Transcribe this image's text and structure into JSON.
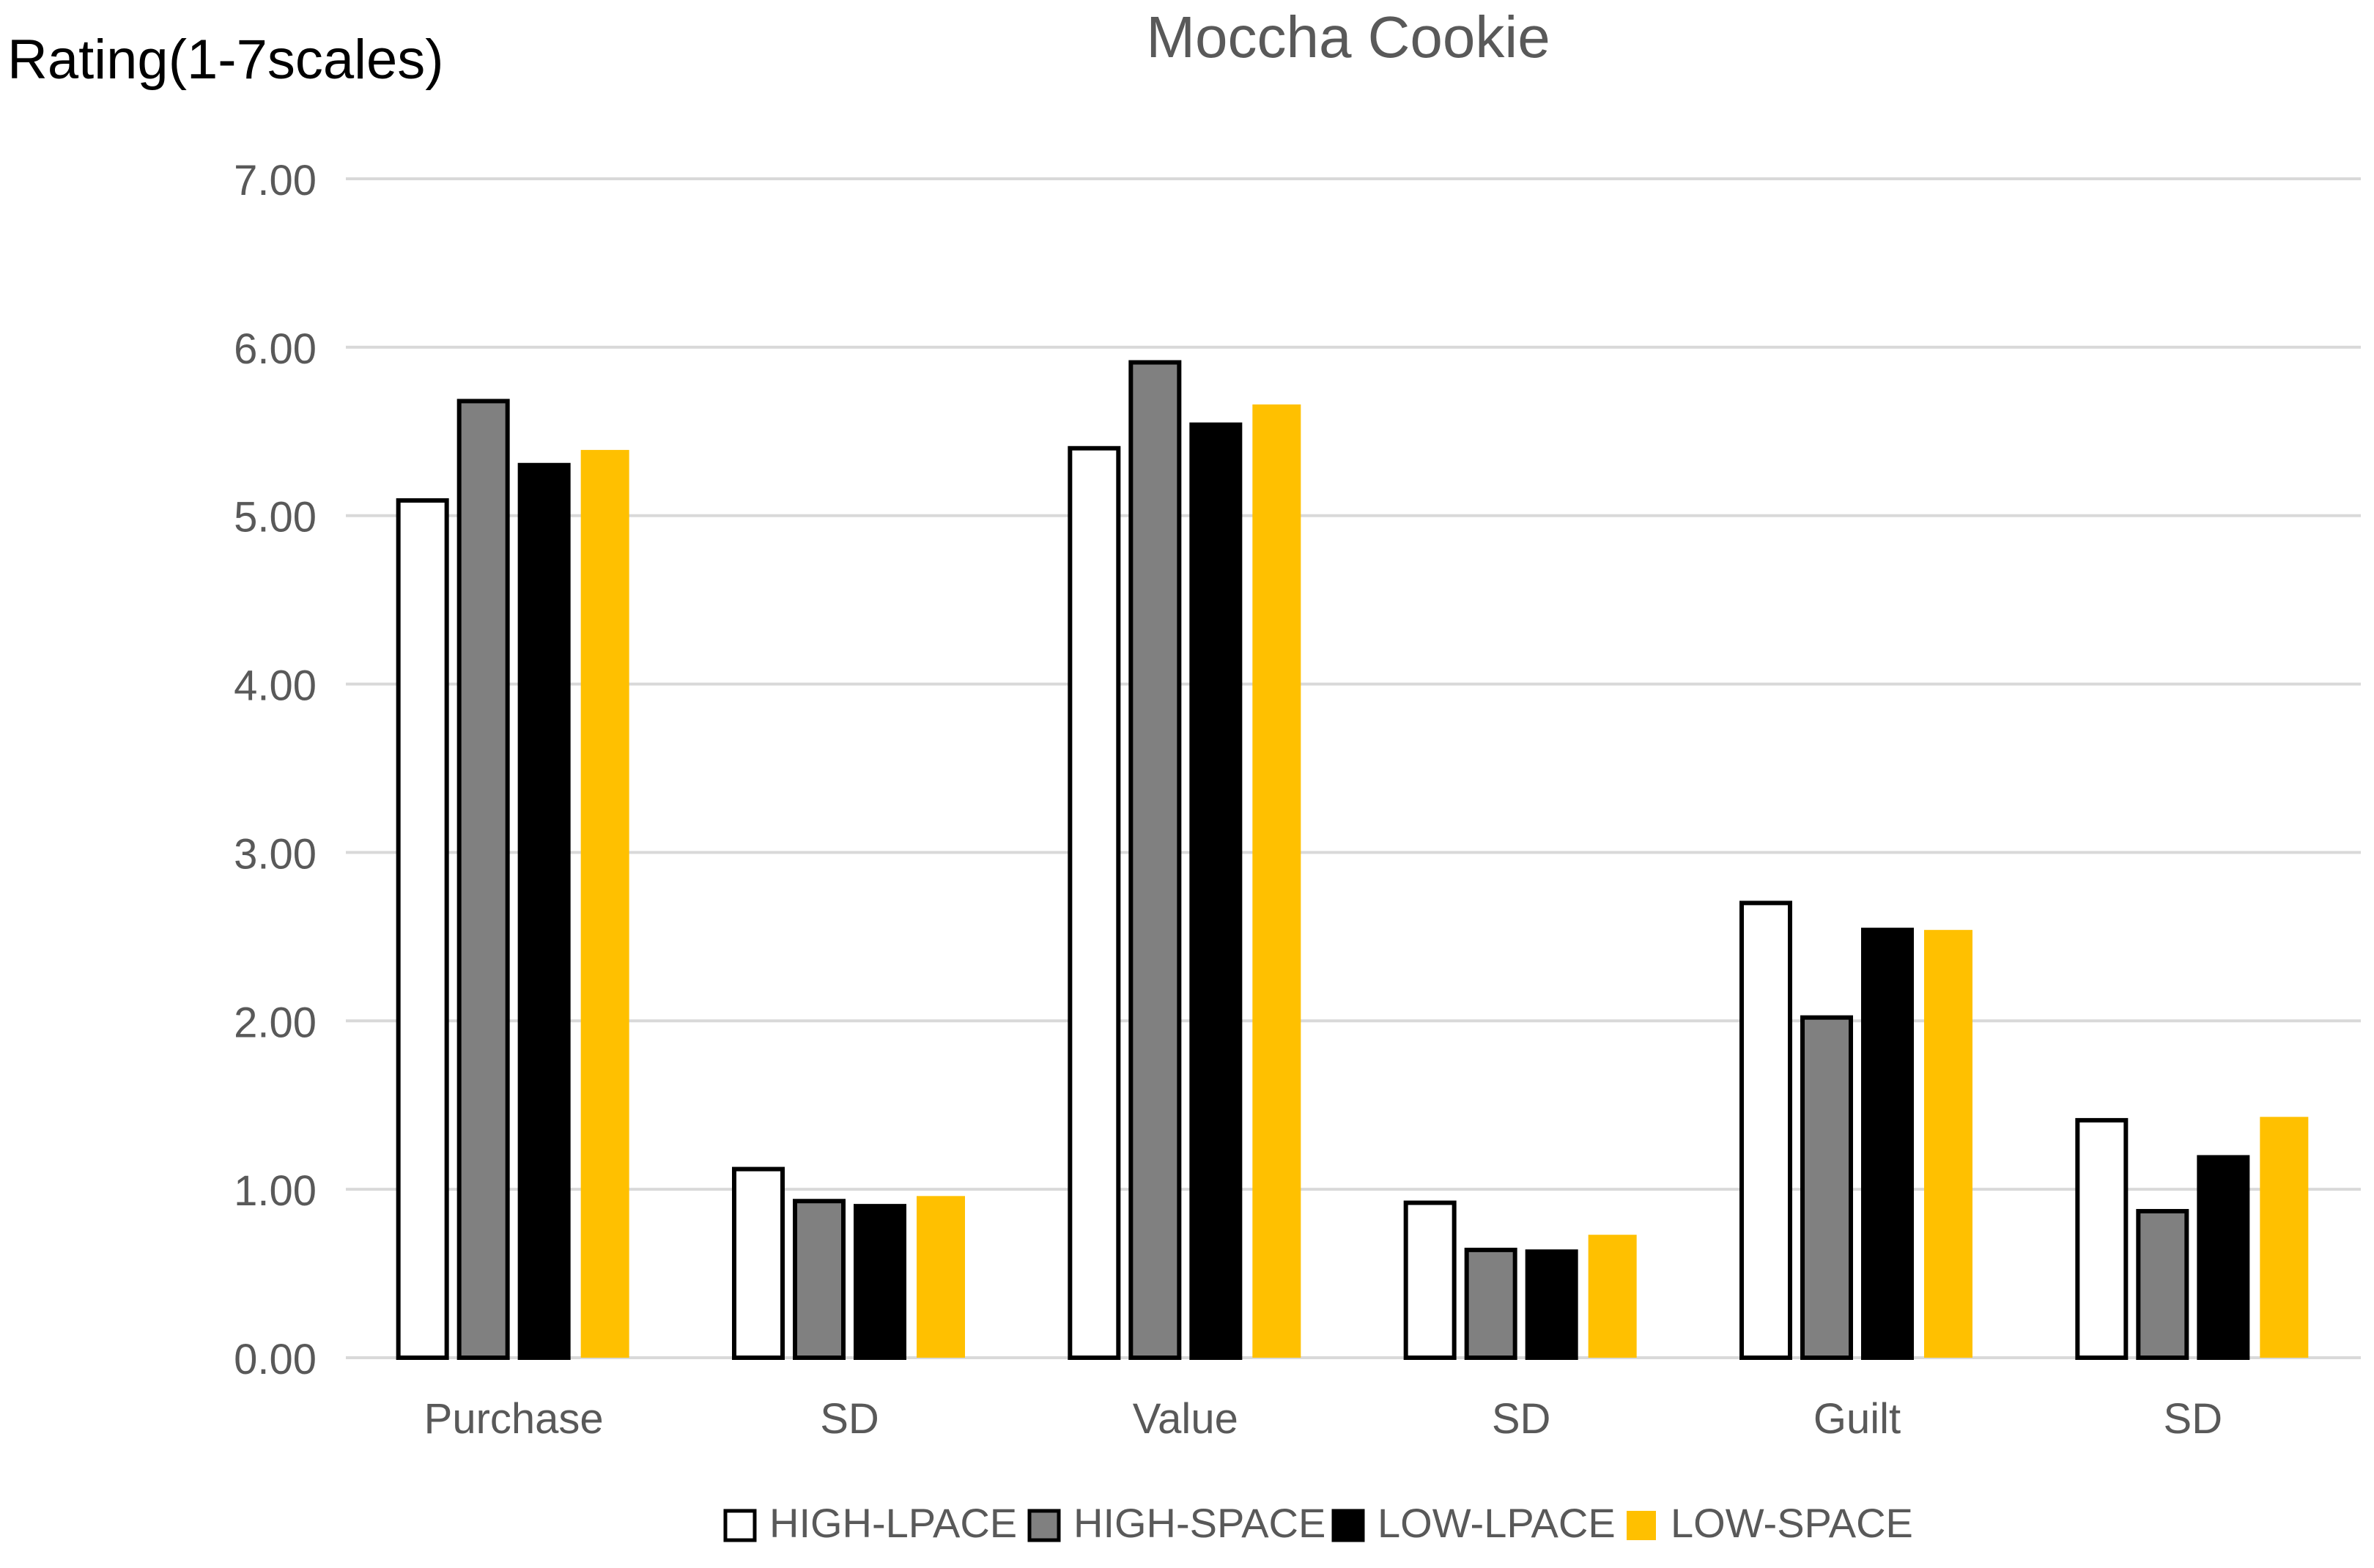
{
  "chart_data": {
    "type": "bar",
    "title": "Moccha Cookie",
    "ylabel": "Rating(1-7scales)",
    "xlabel": "",
    "ylim": [
      0,
      7
    ],
    "yticks": [
      "0.00",
      "1.00",
      "2.00",
      "3.00",
      "4.00",
      "5.00",
      "6.00",
      "7.00"
    ],
    "grid": true,
    "legend_position": "bottom",
    "categories": [
      "Purchase",
      "SD",
      "Value",
      "SD",
      "Guilt",
      "SD"
    ],
    "series": [
      {
        "name": "HIGH-LPACE",
        "values": [
          5.09,
          1.12,
          5.4,
          0.92,
          2.7,
          1.41
        ]
      },
      {
        "name": "HIGH-SPACE",
        "values": [
          5.68,
          0.93,
          5.91,
          0.64,
          2.02,
          0.87
        ]
      },
      {
        "name": "LOW-LPACE",
        "values": [
          5.3,
          0.9,
          5.54,
          0.63,
          2.54,
          1.19
        ]
      },
      {
        "name": "LOW-SPACE",
        "values": [
          5.39,
          0.96,
          5.66,
          0.73,
          2.54,
          1.43
        ]
      }
    ],
    "series_colors": {
      "fill": [
        "#ffffff",
        "#808080",
        "#000000",
        "#ffc000"
      ],
      "stroke": [
        "#000000",
        "#000000",
        "#000000",
        "#ffc000"
      ]
    },
    "gridline_color": "#d9d9d9",
    "text_color": "#595959"
  }
}
